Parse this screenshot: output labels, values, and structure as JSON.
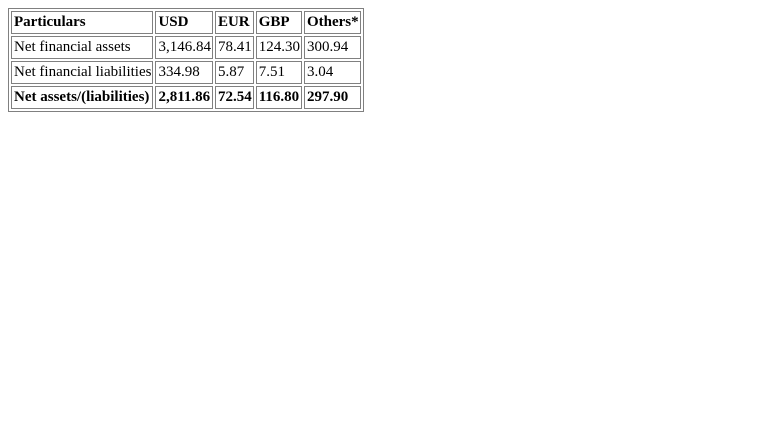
{
  "table": {
    "headers": [
      "Particulars",
      "USD",
      "EUR",
      "GBP",
      "Others*"
    ],
    "rows": [
      [
        "Net financial assets",
        "3,146.84",
        "78.41",
        "124.30",
        "300.94"
      ],
      [
        "Net financial liabilities",
        "334.98",
        "5.87",
        "7.51",
        "3.04"
      ],
      [
        "Net assets/(liabilities)",
        "2,811.86",
        "72.54",
        "116.80",
        "297.90"
      ]
    ]
  }
}
